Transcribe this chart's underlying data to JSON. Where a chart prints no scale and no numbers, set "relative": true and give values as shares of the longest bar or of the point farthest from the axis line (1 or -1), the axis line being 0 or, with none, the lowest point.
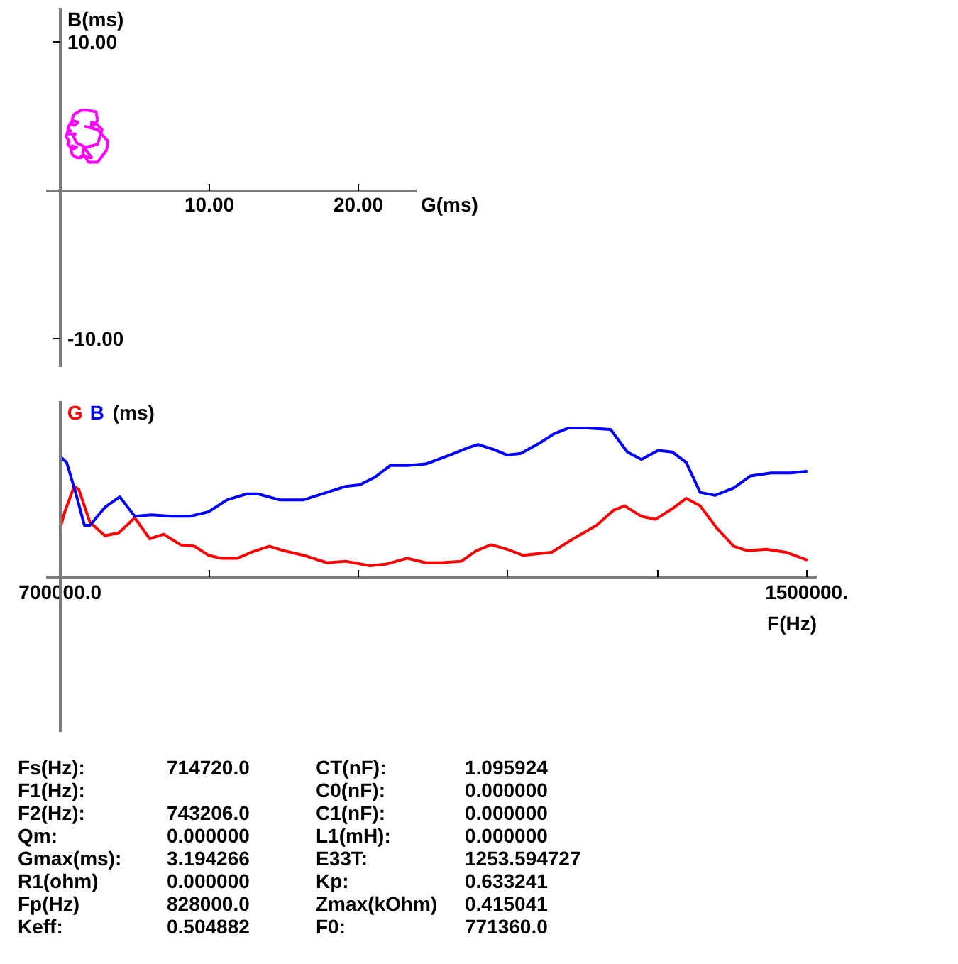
{
  "chart_data": [
    {
      "type": "line",
      "xlabel": "G(ms)",
      "ylabel": "B(ms)",
      "xlim": [
        -0.95,
        23.9
      ],
      "ylim": [
        -11.9,
        12.3
      ],
      "xticks": [
        {
          "value": 10,
          "label": "10.00"
        },
        {
          "value": 20,
          "label": "20.00"
        }
      ],
      "yticks": [
        {
          "value": -10,
          "label": "-10.00"
        },
        {
          "value": 10,
          "label": "10.00"
        }
      ],
      "series": [
        {
          "color": "#ff00ff",
          "x": [
            1.7,
            2.5,
            3.2,
            3.1,
            2.5,
            1.9,
            1.5,
            1.6,
            2.1,
            1.4,
            1.4,
            1.1,
            0.8,
            0.7,
            0.8,
            1.1,
            0.9,
            0.8,
            0.5,
            0.6,
            0.4,
            0.5,
            0.7,
            0.5,
            0.6,
            0.8,
            1.2,
            1.0,
            0.8,
            0.8,
            0.9,
            1.4,
            1.8,
            2.4,
            2.5,
            2.1,
            2.1,
            2.4,
            2.8,
            2.5,
            1.7,
            1.1,
            0.9,
            1.0,
            0.9,
            0.6
          ],
          "values": [
            4.3,
            4.1,
            3.3,
            2.7,
            1.9,
            1.9,
            2.5,
            2.9,
            2.2,
            2.3,
            2.2,
            2.2,
            2.4,
            2.8,
            3.0,
            2.9,
            2.8,
            2.8,
            3.1,
            3.3,
            3.6,
            4.0,
            4.0,
            4.1,
            4.4,
            4.7,
            4.6,
            4.4,
            4.4,
            4.8,
            5.1,
            5.4,
            5.4,
            5.3,
            4.7,
            4.2,
            4.6,
            4.5,
            4.1,
            3.1,
            2.9,
            3.2,
            3.6,
            3.8,
            3.8,
            3.8
          ]
        }
      ]
    },
    {
      "type": "line",
      "relative": true,
      "xlabel": "F(Hz)",
      "ylabel": "(ms)",
      "xlim": [
        685000,
        1511000
      ],
      "xticks": [
        {
          "value": 700000,
          "label": "700000.0"
        },
        {
          "value": 860000,
          "label": null
        },
        {
          "value": 1020000,
          "label": null
        },
        {
          "value": 1180000,
          "label": null
        },
        {
          "value": 1340000,
          "label": null
        },
        {
          "value": 1500000,
          "label": "1500000."
        }
      ],
      "series": [
        {
          "name": "G",
          "color": "#ff0000",
          "x": [
            700000,
            705000,
            715000,
            720000,
            732000,
            748000,
            763000,
            780000,
            796000,
            811000,
            829000,
            844000,
            859000,
            872000,
            890000,
            905000,
            924000,
            940000,
            961000,
            986000,
            1006000,
            1032000,
            1049000,
            1072000,
            1092000,
            1108000,
            1130000,
            1146000,
            1162000,
            1179000,
            1196000,
            1227000,
            1250000,
            1275000,
            1293000,
            1305000,
            1323000,
            1338000,
            1356000,
            1371000,
            1386000,
            1404000,
            1422000,
            1437000,
            1457000,
            1478000,
            1500000
          ],
          "values": [
            0.33,
            0.44,
            0.61,
            0.59,
            0.37,
            0.28,
            0.3,
            0.4,
            0.26,
            0.29,
            0.22,
            0.21,
            0.15,
            0.13,
            0.13,
            0.17,
            0.21,
            0.18,
            0.15,
            0.1,
            0.11,
            0.08,
            0.09,
            0.13,
            0.1,
            0.1,
            0.11,
            0.18,
            0.22,
            0.19,
            0.15,
            0.17,
            0.26,
            0.35,
            0.45,
            0.48,
            0.41,
            0.39,
            0.46,
            0.53,
            0.48,
            0.33,
            0.21,
            0.18,
            0.19,
            0.17,
            0.12
          ]
        },
        {
          "name": "B",
          "color": "#0000ff",
          "x": [
            700000,
            707000,
            717000,
            726000,
            732000,
            748000,
            764000,
            780000,
            798000,
            819000,
            839000,
            859000,
            879000,
            900000,
            912000,
            935000,
            961000,
            986000,
            1006000,
            1021000,
            1037000,
            1054000,
            1072000,
            1092000,
            1118000,
            1138000,
            1148000,
            1163000,
            1179000,
            1194000,
            1214000,
            1229000,
            1245000,
            1265000,
            1290000,
            1308000,
            1323000,
            1341000,
            1356000,
            1371000,
            1386000,
            1402000,
            1422000,
            1440000,
            1462000,
            1483000,
            1500000
          ],
          "values": [
            0.81,
            0.77,
            0.56,
            0.35,
            0.35,
            0.47,
            0.54,
            0.41,
            0.42,
            0.41,
            0.41,
            0.44,
            0.52,
            0.56,
            0.56,
            0.52,
            0.52,
            0.57,
            0.61,
            0.62,
            0.67,
            0.75,
            0.75,
            0.76,
            0.82,
            0.87,
            0.89,
            0.86,
            0.82,
            0.83,
            0.9,
            0.96,
            1.0,
            1.0,
            0.99,
            0.84,
            0.79,
            0.85,
            0.84,
            0.77,
            0.57,
            0.55,
            0.6,
            0.68,
            0.7,
            0.7,
            0.71
          ]
        }
      ]
    },
    {
      "type": "other",
      "annotations": [
        "Fs(Hz): 714720.0",
        "CT(nF): 1.095924",
        "F1(Hz):",
        "C0(nF): 0.000000",
        "F2(Hz): 743206.0",
        "C1(nF): 0.000000",
        "Qm: 0.000000",
        "L1(mH): 0.000000",
        "Gmax(ms): 3.194266",
        "E33T: 1253.594727",
        "R1(ohm) 0.000000",
        "Kp: 0.633241",
        "Fp(Hz) 828000.0",
        "Zmax(kOhm) 0.415041",
        "Keff: 0.504882",
        "F0: 771360.0"
      ]
    }
  ]
}
